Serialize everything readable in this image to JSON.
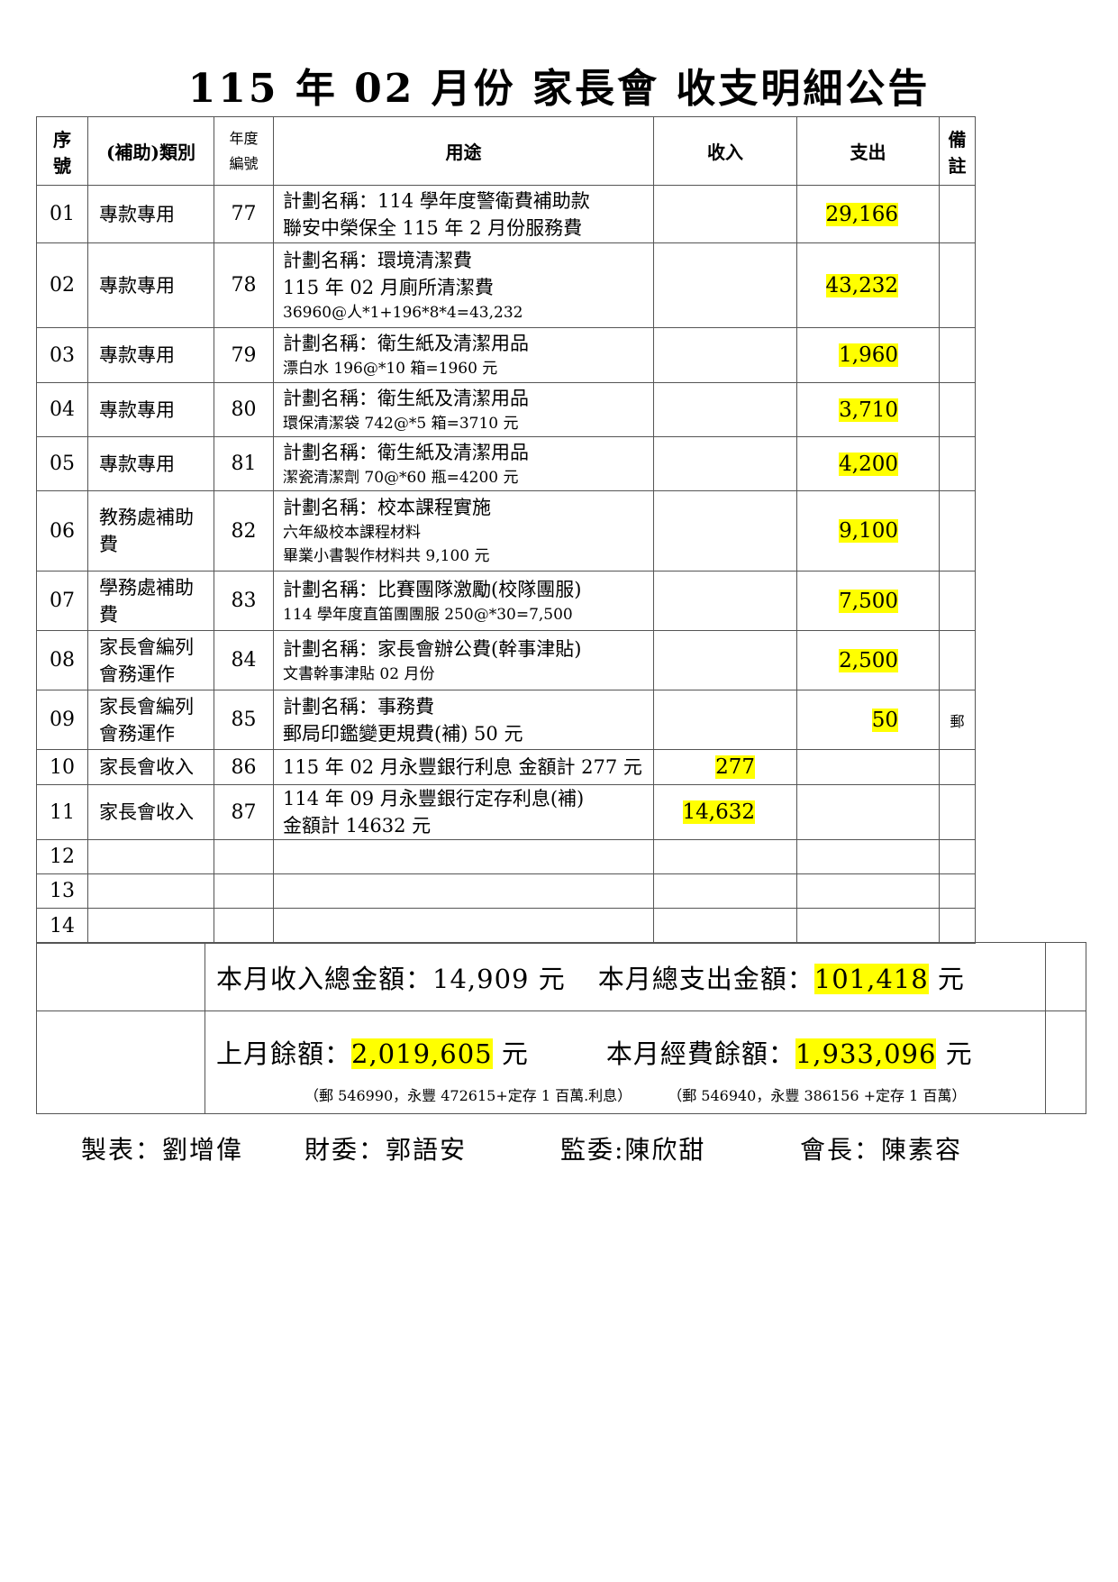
{
  "title": "115 年 02 月份  家長會  收支明細公告",
  "headers": {
    "seq": [
      "序",
      "號"
    ],
    "category": "(補助)類別",
    "code": [
      "年度",
      "編號"
    ],
    "usage": "用途",
    "income": "收入",
    "expense": "支出",
    "remark": [
      "備",
      "註"
    ]
  },
  "rows": [
    {
      "seq": "01",
      "category": [
        "專款專用"
      ],
      "code": "77",
      "usage": [
        "計劃名稱：114 學年度警衛費補助款",
        "聯安中榮保全 115 年 2 月份服務費"
      ],
      "small": [],
      "income": "",
      "expense": "29,166",
      "remark": ""
    },
    {
      "seq": "02",
      "category": [
        "專款專用"
      ],
      "code": "78",
      "usage": [
        "計劃名稱：環境清潔費",
        "115 年 02 月廁所清潔費"
      ],
      "small": [
        "36960@人*1+196*8*4=43,232"
      ],
      "income": "",
      "expense": "43,232",
      "remark": ""
    },
    {
      "seq": "03",
      "category": [
        "專款專用"
      ],
      "code": "79",
      "usage": [
        "計劃名稱：衛生紙及清潔用品"
      ],
      "small": [
        "漂白水 196@*10 箱=1960 元"
      ],
      "income": "",
      "expense": "1,960",
      "remark": ""
    },
    {
      "seq": "04",
      "category": [
        "專款專用"
      ],
      "code": "80",
      "usage": [
        "計劃名稱：衛生紙及清潔用品"
      ],
      "small": [
        "環保清潔袋 742@*5 箱=3710 元"
      ],
      "income": "",
      "expense": "3,710",
      "remark": ""
    },
    {
      "seq": "05",
      "category": [
        "專款專用"
      ],
      "code": "81",
      "usage": [
        "計劃名稱：衛生紙及清潔用品"
      ],
      "small": [
        "潔瓷清潔劑 70@*60 瓶=4200 元"
      ],
      "income": "",
      "expense": "4,200",
      "remark": ""
    },
    {
      "seq": "06",
      "category": [
        "教務處補助",
        "費"
      ],
      "code": "82",
      "usage": [
        "計劃名稱：校本課程實施"
      ],
      "small": [
        "六年級校本課程材料",
        "畢業小書製作材料共 9,100 元"
      ],
      "income": "",
      "expense": "9,100",
      "remark": ""
    },
    {
      "seq": "07",
      "category": [
        "學務處補助",
        "費"
      ],
      "code": "83",
      "usage": [
        "計劃名稱：比賽團隊激勵(校隊團服)"
      ],
      "small": [
        "114 學年度直笛團團服 250@*30=7,500"
      ],
      "income": "",
      "expense": "7,500",
      "remark": ""
    },
    {
      "seq": "08",
      "category": [
        "家長會編列",
        "會務運作"
      ],
      "code": "84",
      "usage": [
        "計劃名稱：家長會辦公費(幹事津貼)"
      ],
      "small": [
        "文書幹事津貼 02 月份"
      ],
      "income": "",
      "expense": "2,500",
      "remark": ""
    },
    {
      "seq": "09",
      "category": [
        "家長會編列",
        "會務運作"
      ],
      "code": "85",
      "usage": [
        "計劃名稱：事務費",
        "郵局印鑑變更規費(補) 50 元"
      ],
      "small": [],
      "income": "",
      "expense": "50",
      "remark": "郵"
    },
    {
      "seq": "10",
      "category": [
        "家長會收入"
      ],
      "code": "86",
      "usage": [
        "115 年 02 月永豐銀行利息 金額計 277 元"
      ],
      "small": [],
      "income": "277",
      "expense": "",
      "remark": ""
    },
    {
      "seq": "11",
      "category": [
        "家長會收入"
      ],
      "code": "87",
      "usage": [
        "114 年 09 月永豐銀行定存利息(補)",
        "金額計 14632 元"
      ],
      "small": [],
      "income": "14,632",
      "expense": "",
      "remark": ""
    },
    {
      "seq": "12",
      "category": [],
      "code": "",
      "usage": [],
      "small": [],
      "income": "",
      "expense": "",
      "remark": ""
    },
    {
      "seq": "13",
      "category": [],
      "code": "",
      "usage": [],
      "small": [],
      "income": "",
      "expense": "",
      "remark": ""
    },
    {
      "seq": "14",
      "category": [],
      "code": "",
      "usage": [],
      "small": [],
      "income": "",
      "expense": "",
      "remark": ""
    }
  ],
  "summary": {
    "income_label": "本月收入總金額：",
    "income_total": "14,909",
    "unit": "元",
    "expense_label": "本月總支出金額：",
    "expense_total": "101,418",
    "prev_label": "上月餘額：",
    "prev_balance": "2,019,605",
    "current_label": "本月經費餘額：",
    "current_balance": "1,933,096",
    "prev_note": "（郵 546990，永豐 472615+定存 1 百萬.利息）",
    "current_note": "（郵 546940，永豐 386156 +定存 1 百萬）"
  },
  "signatures": [
    "製表：劉增偉",
    "財委：郭語安",
    "監委:陳欣甜",
    "會長：陳素容"
  ],
  "colors": {
    "highlight": "#ffff00",
    "border": "#555555"
  }
}
